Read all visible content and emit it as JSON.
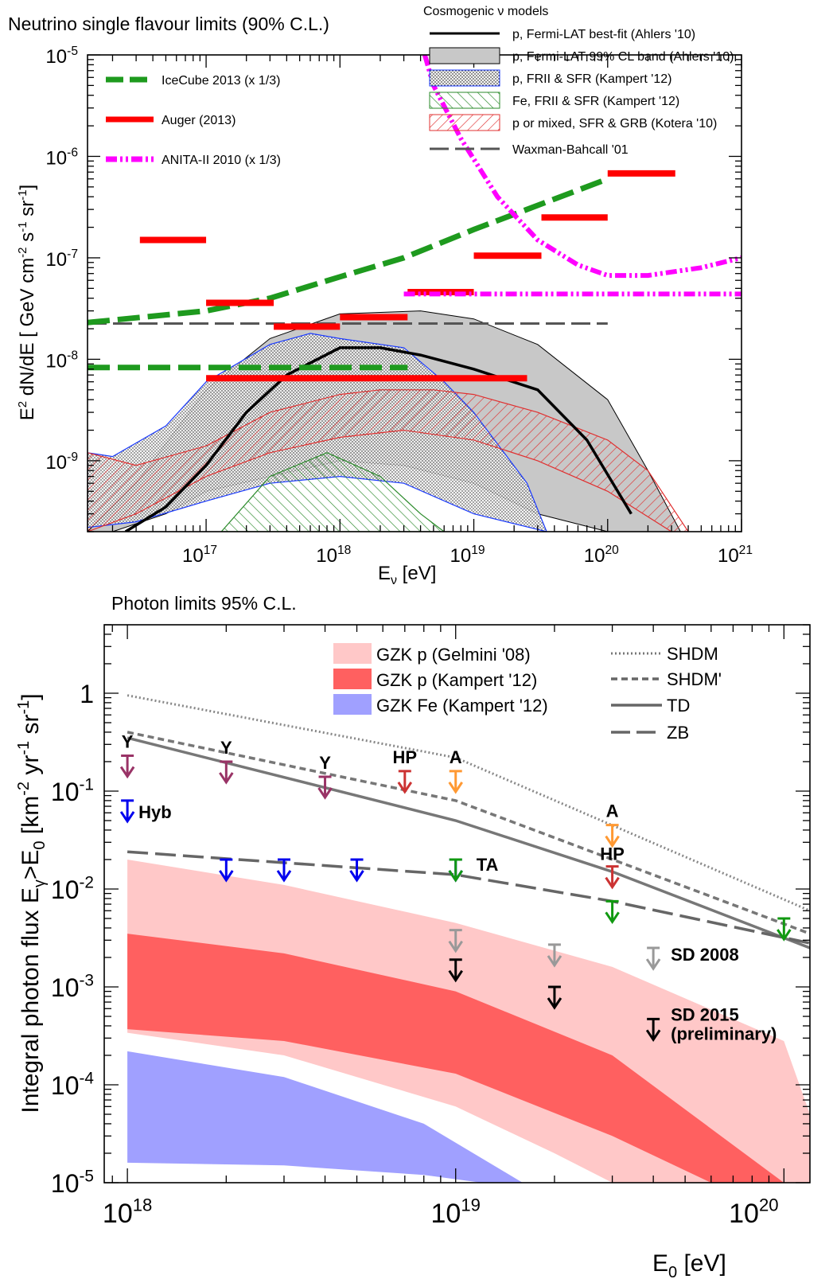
{
  "chart_data": [
    {
      "type": "line",
      "title": "Neutrino single flavour limits (90% C.L.)",
      "xlabel": "E_ν [eV]",
      "ylabel": "E² dN/dE  [ GeV cm⁻² s⁻¹ sr⁻¹]",
      "xscale": "log",
      "yscale": "log",
      "xlim": [
        1.3e+16,
        1e+21
      ],
      "ylim": [
        2e-10,
        1e-05
      ],
      "xticks": [
        "10^17",
        "10^18",
        "10^19",
        "10^20",
        "10^21"
      ],
      "yticks": [
        "10^-9",
        "10^-8",
        "10^-7",
        "10^-6",
        "10^-5"
      ],
      "legend_models_title": "Cosmogenic ν models",
      "limits": [
        {
          "name": "IceCube 2013 (x 1/3)",
          "color": "#1e9a1e",
          "style": "dashed",
          "x": [
            1.3e+16,
            1e+17,
            3e+17,
            1e+18,
            3e+18,
            1e+19,
            1e+20
          ],
          "y": [
            2.3e-08,
            3e-08,
            4e-08,
            6.5e-08,
            1e-07,
            1.9e-07,
            6e-07
          ],
          "integral": {
            "x": [
              1.3e+16,
              3.2e+18
            ],
            "y": 8.3e-09
          }
        },
        {
          "name": "Auger (2013)",
          "color": "#ff0000",
          "style": "bins",
          "bins": [
            {
              "x0": 3.2e+16,
              "x1": 1e+17,
              "y": 1.5e-07
            },
            {
              "x0": 1e+17,
              "x1": 3.2e+17,
              "y": 3.6e-08
            },
            {
              "x0": 3.2e+17,
              "x1": 1e+18,
              "y": 2.1e-08
            },
            {
              "x0": 1e+18,
              "x1": 3.2e+18,
              "y": 2.6e-08
            },
            {
              "x0": 3.2e+18,
              "x1": 1e+19,
              "y": 4.6e-08
            },
            {
              "x0": 1e+19,
              "x1": 3.2e+19,
              "y": 1.05e-07
            },
            {
              "x0": 3.2e+19,
              "x1": 1e+20,
              "y": 2.5e-07
            },
            {
              "x0": 1e+20,
              "x1": 3.2e+20,
              "y": 6.8e-07
            }
          ],
          "integral": {
            "x": [
              1e+17,
              2.5e+19
            ],
            "y": 6.5e-09
          }
        },
        {
          "name": "ANITA-II 2010 (x 1/3)",
          "color": "#ff00ff",
          "style": "dashdot",
          "x": [
            4.3e+18,
            5e+18,
            8e+18,
            1.5e+19,
            3e+19,
            6e+19,
            1e+20,
            2e+20,
            5e+20,
            1e+21
          ],
          "y": [
            1e-05,
            5e-06,
            1.5e-06,
            4e-07,
            1.5e-07,
            8.5e-08,
            6.7e-08,
            6.7e-08,
            8e-08,
            1e-07
          ],
          "floor": {
            "x": [
              3e+18,
              1e+21
            ],
            "y": 4.4e-08
          }
        }
      ],
      "models": [
        {
          "name": "p, Fermi-LAT best-fit (Ahlers '10)",
          "style": "solid-black",
          "x": [
            2.5e+16,
            5e+16,
            1e+17,
            2e+17,
            4e+17,
            1e+18,
            2e+18,
            4e+18,
            1e+19,
            3e+19,
            7e+19,
            1.5e+20
          ],
          "y": [
            2e-10,
            3.5e-10,
            9e-10,
            3e-09,
            7e-09,
            1.3e-08,
            1.3e-08,
            1.1e-08,
            8e-09,
            5e-09,
            1.6e-09,
            3e-10
          ]
        },
        {
          "name": "p, Fermi-LAT 99% CL band (Ahlers '10)",
          "style": "band-gray",
          "upper": {
            "x": [
              1.3e+16,
              3e+16,
              1e+17,
              3e+17,
              1e+18,
              4e+18,
              1e+19,
              3e+19,
              1e+20,
              2e+20,
              3.5e+20
            ],
            "y": [
              2e-10,
              6e-10,
              5e-09,
              1.6e-08,
              2.8e-08,
              3e-08,
              2.5e-08,
              1.4e-08,
              4e-09,
              8e-10,
              2e-10
            ]
          },
          "lower": {
            "x": [
              2e+16,
              5e+16,
              1e+17,
              3e+17,
              1e+18,
              3e+18,
              1e+19,
              3e+19,
              1e+20,
              3.5e+20
            ],
            "y": [
              2e-10,
              3e-10,
              5e-10,
              7e-10,
              1e-09,
              9e-10,
              6e-10,
              3e-10,
              2e-10,
              2e-10
            ]
          }
        },
        {
          "name": "p, FRII & SFR (Kampert '12)",
          "style": "band-blue",
          "upper": {
            "x": [
              1.3e+16,
              2e+16,
              5e+16,
              1e+17,
              3e+17,
              6e+17,
              1e+18,
              3e+18,
              6e+18,
              1e+19,
              2.5e+19,
              3.5e+19
            ],
            "y": [
              1.2e-09,
              1.1e-09,
              2.2e-09,
              6e-09,
              1.4e-08,
              1.8e-08,
              1.6e-08,
              1.3e-08,
              6e-09,
              3e-09,
              6e-10,
              2e-10
            ]
          },
          "lower": {
            "x": [
              1.3e+16,
              3e+16,
              1e+17,
              3e+17,
              1e+18,
              3e+18,
              1e+19,
              3.5e+19
            ],
            "y": [
              2.2e-10,
              2.5e-10,
              4e-10,
              6e-10,
              7e-10,
              6e-10,
              3e-10,
              2e-10
            ]
          }
        },
        {
          "name": "Fe, FRII & SFR (Kampert '12)",
          "style": "band-green",
          "upper": {
            "x": [
              1.3e+17,
              3e+17,
              8e+17,
              2e+18,
              4e+18,
              6e+18
            ],
            "y": [
              2e-10,
              7e-10,
              1.2e-09,
              7e-10,
              3e-10,
              2e-10
            ]
          },
          "lower": {
            "x": [
              1.3e+17,
              6e+18
            ],
            "y": [
              2e-10,
              2e-10
            ]
          }
        },
        {
          "name": "p or mixed, SFR & GRB (Kotera '10)",
          "style": "band-red",
          "upper": {
            "x": [
              1.3e+16,
              3e+16,
              1e+17,
              3e+17,
              1e+18,
              2e+18,
              5e+18,
              1e+19,
              3e+19,
              1e+20,
              2e+20,
              4e+20
            ],
            "y": [
              1.2e-09,
              9e-10,
              1.4e-09,
              3e-09,
              4.5e-09,
              5e-09,
              5e-09,
              4.5e-09,
              3e-09,
              1.6e-09,
              8e-10,
              2e-10
            ]
          },
          "lower": {
            "x": [
              1.3e+16,
              3e+16,
              1e+17,
              3e+17,
              1e+18,
              3e+18,
              1e+19,
              3e+19,
              1e+20,
              3e+20
            ],
            "y": [
              2e-10,
              3e-10,
              7e-10,
              1.2e-09,
              1.7e-09,
              2e-09,
              1.6e-09,
              1e-09,
              5e-10,
              2e-10
            ]
          }
        },
        {
          "name": "Waxman-Bahcall '01",
          "style": "dashed-gray",
          "x": [
            1.3e+16,
            1e+20
          ],
          "y": [
            2.25e-08,
            2.25e-08
          ]
        }
      ]
    },
    {
      "type": "line",
      "title": "Photon limits 95% C.L.",
      "xlabel": "E_0 [eV]",
      "ylabel": "Integral photon flux E_γ>E_0 [km⁻² yr⁻¹ sr⁻¹]",
      "xscale": "log",
      "yscale": "log",
      "xlim": [
        8.5e+17,
        1.2e+20
      ],
      "ylim": [
        1e-05,
        5
      ],
      "xticks": [
        "10^18",
        "10^19",
        "10^20"
      ],
      "yticks": [
        "10^-5",
        "10^-4",
        "10^-3",
        "10^-2",
        "10^-1",
        "1"
      ],
      "bands": [
        {
          "name": "GZK p (Gelmini '08)",
          "color": "#ffc8c8",
          "upper": {
            "x": [
              1e+18,
              3e+18,
              1e+19,
              3e+19,
              1e+20,
              1.2e+20
            ],
            "y": [
              0.02,
              0.011,
              0.0045,
              0.0016,
              0.00028,
              5e-05
            ]
          },
          "lower": {
            "x": [
              1e+18,
              3e+18,
              1e+19,
              2e+19,
              3e+19,
              6e+19,
              1e+20,
              1.2e+20
            ],
            "y": [
              0.00034,
              0.0002,
              6e-05,
              2e-05,
              1e-05,
              1e-05,
              1e-05,
              1e-05
            ]
          }
        },
        {
          "name": "GZK p (Kampert '12)",
          "color": "#ff6060",
          "upper": {
            "x": [
              1e+18,
              3e+18,
              1e+19,
              3e+19,
              1e+20
            ],
            "y": [
              0.0035,
              0.0022,
              0.0009,
              0.0002,
              1e-05
            ]
          },
          "lower": {
            "x": [
              1e+18,
              3e+18,
              1e+19,
              3e+19,
              6e+19
            ],
            "y": [
              0.00037,
              0.00028,
              0.00013,
              3e-05,
              1e-05
            ]
          }
        },
        {
          "name": "GZK Fe (Kampert '12)",
          "color": "#a0a0ff",
          "upper": {
            "x": [
              1e+18,
              3e+18,
              8e+18,
              1.6e+19
            ],
            "y": [
              0.00022,
              0.00012,
              4e-05,
              1e-05
            ]
          },
          "lower": {
            "x": [
              1e+18,
              3e+18,
              8e+18,
              1.2e+19
            ],
            "y": [
              1.6e-05,
              1.5e-05,
              1.2e-05,
              1e-05
            ]
          }
        }
      ],
      "lines": [
        {
          "name": "SHDM",
          "style": "dotted",
          "x": [
            1e+18,
            1e+19,
            1.2e+20
          ],
          "y": [
            0.95,
            0.22,
            0.006
          ]
        },
        {
          "name": "SHDM'",
          "style": "short-dashed",
          "x": [
            1e+18,
            1e+19,
            1.2e+20
          ],
          "y": [
            0.4,
            0.08,
            0.0035
          ]
        },
        {
          "name": "TD",
          "style": "solid",
          "x": [
            1e+18,
            1e+19,
            3e+19,
            1.2e+20
          ],
          "y": [
            0.35,
            0.05,
            0.015,
            0.0025
          ]
        },
        {
          "name": "ZB",
          "style": "long-dashed",
          "x": [
            1e+18,
            1e+19,
            3e+19,
            1.2e+20
          ],
          "y": [
            0.024,
            0.014,
            0.0075,
            0.0028
          ]
        }
      ],
      "upper_limits": [
        {
          "label": "Y",
          "color": "#993366",
          "x": [
            1e+18,
            2e+18,
            4e+18
          ],
          "y": [
            0.23,
            0.2,
            0.14
          ]
        },
        {
          "label": "Hyb",
          "color": "#0000ee",
          "x": [
            1e+18,
            2e+18,
            3e+18,
            5e+18,
            1e+19
          ],
          "y": [
            0.08,
            0.02,
            0.02,
            0.02,
            0.02
          ]
        },
        {
          "label": "HP",
          "color": "#cc3333",
          "x": [
            7e+18,
            3e+19
          ],
          "y": [
            0.16,
            0.017
          ]
        },
        {
          "label": "A",
          "color": "#ff9933",
          "x": [
            1e+19,
            3e+19
          ],
          "y": [
            0.16,
            0.045
          ]
        },
        {
          "label": "TA",
          "color": "#119911",
          "x": [
            1e+19,
            3e+19,
            1e+20
          ],
          "y": [
            0.02,
            0.0075,
            0.005
          ]
        },
        {
          "label": "SD 2008",
          "color": "#999999",
          "x": [
            1e+19,
            2e+19,
            4e+19
          ],
          "y": [
            0.0038,
            0.0027,
            0.0025
          ]
        },
        {
          "label": "SD 2015\n(preliminary)",
          "color": "#000000",
          "x": [
            1e+19,
            2e+19,
            4e+19
          ],
          "y": [
            0.0019,
            0.001,
            0.00047
          ]
        }
      ]
    }
  ]
}
